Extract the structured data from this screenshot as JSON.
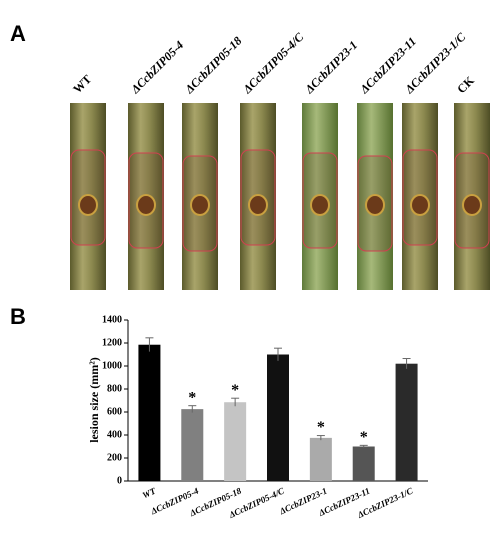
{
  "panel_labels": [
    "A",
    "B"
  ],
  "photo": {
    "labels": [
      "WT",
      "ΔCcbZIP05-4",
      "ΔCcbZIP05-18",
      "ΔCcbZIP05-4/C",
      "ΔCcbZIP23-1",
      "ΔCcbZIP23-11",
      "ΔCcbZIP23-1/C",
      "CK"
    ]
  },
  "chart_data": {
    "type": "bar",
    "ylabel": "lesion size (mm²)",
    "categories": [
      "WT",
      "ΔCcbZIP05-4",
      "ΔCcbZIP05-18",
      "ΔCcbZIP05-4/C",
      "ΔCcbZIP23-1",
      "ΔCcbZIP23-11",
      "ΔCcbZIP23-1/C"
    ],
    "values": [
      1185,
      625,
      685,
      1100,
      375,
      300,
      1020
    ],
    "errors": [
      60,
      30,
      35,
      55,
      20,
      10,
      45
    ],
    "colors": [
      "#000000",
      "#808080",
      "#c4c4c4",
      "#111111",
      "#aaaaaa",
      "#555555",
      "#2a2a2a"
    ],
    "significance": [
      null,
      "*",
      "*",
      null,
      "*",
      "*",
      null
    ],
    "ylim": [
      0,
      1400
    ],
    "yticks": [
      0,
      200,
      400,
      600,
      800,
      1000,
      1200,
      1400
    ]
  }
}
